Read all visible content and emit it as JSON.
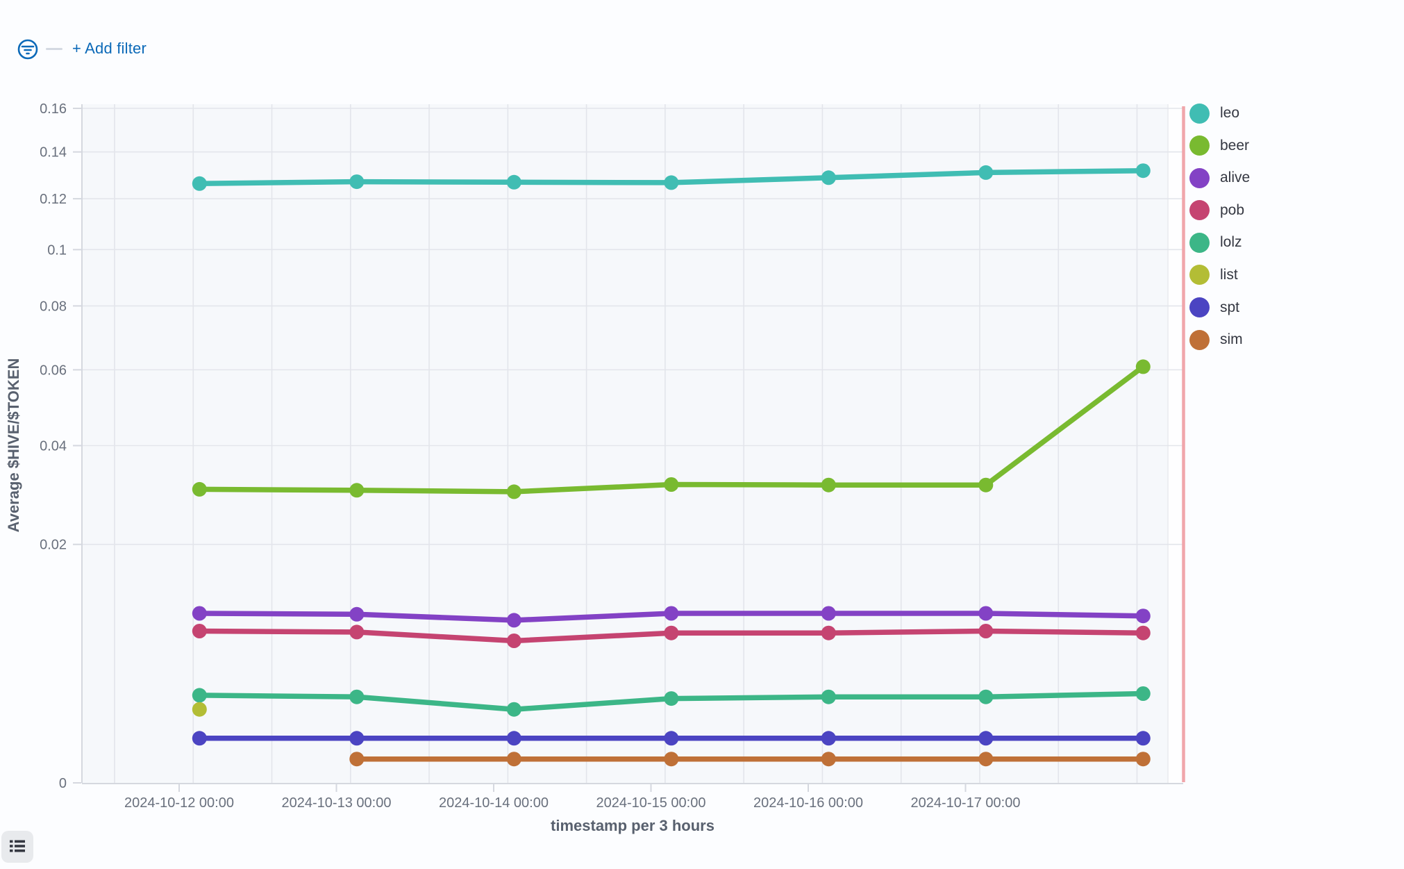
{
  "header": {
    "add_filter_label": "+ Add filter",
    "filter_icon": "filter-circle-icon",
    "divider": "filter-pill-placeholder-dash",
    "accent_color": "#0B69B8"
  },
  "chart_data": {
    "type": "line",
    "title": "",
    "xlabel": "timestamp per 3 hours",
    "ylabel": "Average $HIVE/$TOKEN",
    "y_scale": "sqrt",
    "ylim": [
      0,
      0.16
    ],
    "y_ticks": [
      0,
      0.02,
      0.04,
      0.06,
      0.08,
      0.1,
      0.12,
      0.14,
      0.16
    ],
    "x_tick_labels": [
      "2024-10-12 00:00",
      "2024-10-13 00:00",
      "2024-10-14 00:00",
      "2024-10-15 00:00",
      "2024-10-16 00:00",
      "2024-10-17 00:00"
    ],
    "x_points_per_label_interval": 1,
    "grid": true,
    "legend_position": "right",
    "plot_bg_color": "#F6F8FB",
    "grid_color": "#E3E5EB",
    "axis_line_color": "#D5D8DF",
    "tick_label_color": "#69707D",
    "end_marker_color": "#F0A6AB",
    "series": [
      {
        "name": "leo",
        "color": "#40BDB3",
        "values": [
          0.1263,
          0.1271,
          0.1269,
          0.1267,
          0.1288,
          0.131,
          0.1318
        ]
      },
      {
        "name": "beer",
        "color": "#79BA30",
        "values": [
          0.0303,
          0.0301,
          0.0298,
          0.0313,
          0.0312,
          0.0312,
          0.0609
        ]
      },
      {
        "name": "alive",
        "color": "#8342C5",
        "values": [
          0.0101,
          0.01,
          0.0093,
          0.0101,
          0.0101,
          0.0101,
          0.0098
        ]
      },
      {
        "name": "pob",
        "color": "#C54471",
        "values": [
          0.0081,
          0.008,
          0.0071,
          0.0079,
          0.0079,
          0.0081,
          0.0079
        ]
      },
      {
        "name": "lolz",
        "color": "#3CB687",
        "values": [
          0.0027,
          0.0026,
          0.0019,
          0.0025,
          0.0026,
          0.0026,
          0.0028
        ]
      },
      {
        "name": "list",
        "color": "#B3BD35",
        "values": [
          0.0019,
          null,
          null,
          null,
          null,
          null,
          null
        ]
      },
      {
        "name": "spt",
        "color": "#4B44C2",
        "values": [
          0.0007,
          0.0007,
          0.0007,
          0.0007,
          0.0007,
          0.0007,
          0.0007
        ]
      },
      {
        "name": "sim",
        "color": "#BF7037",
        "values": [
          null,
          0.0002,
          0.0002,
          0.0002,
          0.0002,
          0.0002,
          0.0002
        ]
      }
    ]
  },
  "footer": {
    "legend_toggle_icon": "list-icon"
  }
}
